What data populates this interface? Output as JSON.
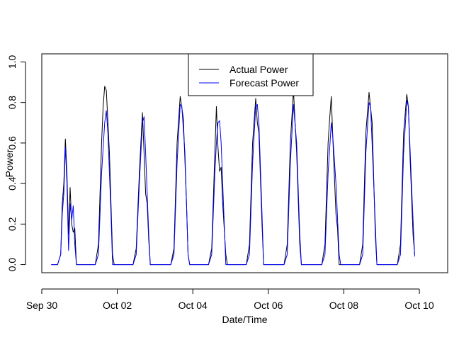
{
  "chart_data": {
    "type": "line",
    "title": "",
    "xlabel": "Date/Time",
    "ylabel": "Power",
    "xlim": [
      "2021-09-30T00:00",
      "2021-10-10T18:00"
    ],
    "ylim": [
      -0.04,
      1.04
    ],
    "x_ticks": [
      "2021-09-30",
      "2021-10-02",
      "2021-10-04",
      "2021-10-06",
      "2021-10-08",
      "2021-10-10"
    ],
    "x_tick_labels": [
      "Sep 30",
      "Oct 02",
      "Oct 04",
      "Oct 06",
      "Oct 08",
      "Oct 10"
    ],
    "y_ticks": [
      0.0,
      0.2,
      0.4,
      0.6,
      0.8,
      1.0
    ],
    "y_tick_labels": [
      "0.0",
      "0.2",
      "0.4",
      "0.6",
      "0.8",
      "1.0"
    ],
    "grid": false,
    "legend": {
      "position": "top-center"
    },
    "series": [
      {
        "name": "Actual Power",
        "color": "#000000",
        "points": [
          [
            "2021-09-30T06:00",
            0.0
          ],
          [
            "2021-09-30T10:00",
            0.0
          ],
          [
            "2021-09-30T12:00",
            0.05
          ],
          [
            "2021-09-30T13:00",
            0.3
          ],
          [
            "2021-09-30T14:00",
            0.4
          ],
          [
            "2021-09-30T15:00",
            0.62
          ],
          [
            "2021-09-30T16:00",
            0.45
          ],
          [
            "2021-09-30T17:00",
            0.15
          ],
          [
            "2021-09-30T18:00",
            0.38
          ],
          [
            "2021-09-30T19:00",
            0.2
          ],
          [
            "2021-09-30T20:00",
            0.16
          ],
          [
            "2021-09-30T21:00",
            0.18
          ],
          [
            "2021-09-30T22:00",
            0.0
          ],
          [
            "2021-10-01T10:00",
            0.0
          ],
          [
            "2021-10-01T12:00",
            0.1
          ],
          [
            "2021-10-01T14:00",
            0.6
          ],
          [
            "2021-10-01T15:00",
            0.78
          ],
          [
            "2021-10-01T16:00",
            0.88
          ],
          [
            "2021-10-01T17:00",
            0.86
          ],
          [
            "2021-10-01T19:00",
            0.55
          ],
          [
            "2021-10-01T21:00",
            0.05
          ],
          [
            "2021-10-01T22:00",
            0.0
          ],
          [
            "2021-10-02T10:00",
            0.0
          ],
          [
            "2021-10-02T12:00",
            0.08
          ],
          [
            "2021-10-02T14:00",
            0.45
          ],
          [
            "2021-10-02T15:00",
            0.6
          ],
          [
            "2021-10-02T16:00",
            0.75
          ],
          [
            "2021-10-02T17:00",
            0.55
          ],
          [
            "2021-10-02T18:00",
            0.35
          ],
          [
            "2021-10-02T19:00",
            0.3
          ],
          [
            "2021-10-02T20:00",
            0.12
          ],
          [
            "2021-10-02T21:00",
            0.0
          ],
          [
            "2021-10-03T10:00",
            0.0
          ],
          [
            "2021-10-03T12:00",
            0.08
          ],
          [
            "2021-10-03T14:00",
            0.6
          ],
          [
            "2021-10-03T16:00",
            0.83
          ],
          [
            "2021-10-03T18:00",
            0.72
          ],
          [
            "2021-10-03T20:00",
            0.3
          ],
          [
            "2021-10-03T21:00",
            0.05
          ],
          [
            "2021-10-03T22:00",
            0.0
          ],
          [
            "2021-10-04T10:00",
            0.0
          ],
          [
            "2021-10-04T12:00",
            0.08
          ],
          [
            "2021-10-04T14:00",
            0.55
          ],
          [
            "2021-10-04T15:00",
            0.78
          ],
          [
            "2021-10-04T16:00",
            0.58
          ],
          [
            "2021-10-04T17:00",
            0.46
          ],
          [
            "2021-10-04T18:00",
            0.48
          ],
          [
            "2021-10-04T19:00",
            0.3
          ],
          [
            "2021-10-04T21:00",
            0.05
          ],
          [
            "2021-10-04T22:00",
            0.0
          ],
          [
            "2021-10-05T10:00",
            0.0
          ],
          [
            "2021-10-05T12:00",
            0.1
          ],
          [
            "2021-10-05T14:00",
            0.6
          ],
          [
            "2021-10-05T16:00",
            0.82
          ],
          [
            "2021-10-05T17:00",
            0.7
          ],
          [
            "2021-10-05T18:00",
            0.65
          ],
          [
            "2021-10-05T20:00",
            0.2
          ],
          [
            "2021-10-05T21:00",
            0.0
          ],
          [
            "2021-10-06T10:00",
            0.0
          ],
          [
            "2021-10-06T12:00",
            0.1
          ],
          [
            "2021-10-06T14:00",
            0.6
          ],
          [
            "2021-10-06T16:00",
            0.86
          ],
          [
            "2021-10-06T18:00",
            0.55
          ],
          [
            "2021-10-06T20:00",
            0.1
          ],
          [
            "2021-10-06T21:00",
            0.0
          ],
          [
            "2021-10-07T10:00",
            0.0
          ],
          [
            "2021-10-07T12:00",
            0.1
          ],
          [
            "2021-10-07T14:00",
            0.6
          ],
          [
            "2021-10-07T15:00",
            0.72
          ],
          [
            "2021-10-07T16:00",
            0.83
          ],
          [
            "2021-10-07T17:00",
            0.62
          ],
          [
            "2021-10-07T19:00",
            0.25
          ],
          [
            "2021-10-07T20:00",
            0.18
          ],
          [
            "2021-10-07T21:00",
            0.0
          ],
          [
            "2021-10-08T10:00",
            0.0
          ],
          [
            "2021-10-08T12:00",
            0.1
          ],
          [
            "2021-10-08T14:00",
            0.65
          ],
          [
            "2021-10-08T16:00",
            0.85
          ],
          [
            "2021-10-08T18:00",
            0.7
          ],
          [
            "2021-10-08T20:00",
            0.15
          ],
          [
            "2021-10-08T21:00",
            0.0
          ],
          [
            "2021-10-09T10:00",
            0.0
          ],
          [
            "2021-10-09T12:00",
            0.1
          ],
          [
            "2021-10-09T14:00",
            0.65
          ],
          [
            "2021-10-09T16:00",
            0.84
          ],
          [
            "2021-10-09T17:00",
            0.78
          ],
          [
            "2021-10-09T18:00",
            0.55
          ],
          [
            "2021-10-09T20:00",
            0.15
          ],
          [
            "2021-10-09T21:00",
            0.05
          ]
        ]
      },
      {
        "name": "Forecast Power",
        "color": "#0000ff",
        "points": [
          [
            "2021-09-30T06:00",
            0.0
          ],
          [
            "2021-09-30T10:00",
            0.0
          ],
          [
            "2021-09-30T12:00",
            0.05
          ],
          [
            "2021-09-30T13:00",
            0.25
          ],
          [
            "2021-09-30T14:00",
            0.35
          ],
          [
            "2021-09-30T15:00",
            0.58
          ],
          [
            "2021-09-30T16:00",
            0.4
          ],
          [
            "2021-09-30T17:00",
            0.07
          ],
          [
            "2021-09-30T18:00",
            0.3
          ],
          [
            "2021-09-30T19:00",
            0.22
          ],
          [
            "2021-09-30T20:00",
            0.29
          ],
          [
            "2021-09-30T21:00",
            0.1
          ],
          [
            "2021-09-30T22:00",
            0.0
          ],
          [
            "2021-10-01T10:00",
            0.0
          ],
          [
            "2021-10-01T12:00",
            0.05
          ],
          [
            "2021-10-01T14:00",
            0.45
          ],
          [
            "2021-10-01T16:00",
            0.7
          ],
          [
            "2021-10-01T17:00",
            0.76
          ],
          [
            "2021-10-01T18:00",
            0.65
          ],
          [
            "2021-10-01T20:00",
            0.25
          ],
          [
            "2021-10-01T21:00",
            0.0
          ],
          [
            "2021-10-02T10:00",
            0.0
          ],
          [
            "2021-10-02T12:00",
            0.05
          ],
          [
            "2021-10-02T14:00",
            0.4
          ],
          [
            "2021-10-02T16:00",
            0.7
          ],
          [
            "2021-10-02T17:00",
            0.73
          ],
          [
            "2021-10-02T18:00",
            0.55
          ],
          [
            "2021-10-02T20:00",
            0.15
          ],
          [
            "2021-10-02T21:00",
            0.0
          ],
          [
            "2021-10-03T10:00",
            0.0
          ],
          [
            "2021-10-03T12:00",
            0.05
          ],
          [
            "2021-10-03T14:00",
            0.5
          ],
          [
            "2021-10-03T16:00",
            0.79
          ],
          [
            "2021-10-03T17:00",
            0.78
          ],
          [
            "2021-10-03T19:00",
            0.55
          ],
          [
            "2021-10-03T21:00",
            0.05
          ],
          [
            "2021-10-03T22:00",
            0.0
          ],
          [
            "2021-10-04T10:00",
            0.0
          ],
          [
            "2021-10-04T12:00",
            0.05
          ],
          [
            "2021-10-04T14:00",
            0.45
          ],
          [
            "2021-10-04T15:00",
            0.6
          ],
          [
            "2021-10-04T16:00",
            0.7
          ],
          [
            "2021-10-04T17:00",
            0.71
          ],
          [
            "2021-10-04T18:00",
            0.6
          ],
          [
            "2021-10-04T20:00",
            0.2
          ],
          [
            "2021-10-04T21:00",
            0.0
          ],
          [
            "2021-10-05T10:00",
            0.0
          ],
          [
            "2021-10-05T12:00",
            0.05
          ],
          [
            "2021-10-05T14:00",
            0.5
          ],
          [
            "2021-10-05T16:00",
            0.78
          ],
          [
            "2021-10-05T17:00",
            0.79
          ],
          [
            "2021-10-05T18:00",
            0.7
          ],
          [
            "2021-10-05T20:00",
            0.25
          ],
          [
            "2021-10-05T21:00",
            0.0
          ],
          [
            "2021-10-06T10:00",
            0.0
          ],
          [
            "2021-10-06T12:00",
            0.05
          ],
          [
            "2021-10-06T14:00",
            0.5
          ],
          [
            "2021-10-06T16:00",
            0.79
          ],
          [
            "2021-10-06T18:00",
            0.6
          ],
          [
            "2021-10-06T20:00",
            0.15
          ],
          [
            "2021-10-06T21:00",
            0.0
          ],
          [
            "2021-10-07T10:00",
            0.0
          ],
          [
            "2021-10-07T12:00",
            0.05
          ],
          [
            "2021-10-07T14:00",
            0.45
          ],
          [
            "2021-10-07T16:00",
            0.7
          ],
          [
            "2021-10-07T17:00",
            0.63
          ],
          [
            "2021-10-07T19:00",
            0.4
          ],
          [
            "2021-10-07T21:00",
            0.05
          ],
          [
            "2021-10-07T22:00",
            0.0
          ],
          [
            "2021-10-08T10:00",
            0.0
          ],
          [
            "2021-10-08T12:00",
            0.05
          ],
          [
            "2021-10-08T14:00",
            0.55
          ],
          [
            "2021-10-08T16:00",
            0.8
          ],
          [
            "2021-10-08T17:00",
            0.78
          ],
          [
            "2021-10-08T19:00",
            0.4
          ],
          [
            "2021-10-08T21:00",
            0.0
          ],
          [
            "2021-10-09T10:00",
            0.0
          ],
          [
            "2021-10-09T12:00",
            0.05
          ],
          [
            "2021-10-09T14:00",
            0.55
          ],
          [
            "2021-10-09T16:00",
            0.81
          ],
          [
            "2021-10-09T17:00",
            0.78
          ],
          [
            "2021-10-09T19:00",
            0.4
          ],
          [
            "2021-10-09T21:00",
            0.04
          ]
        ]
      }
    ]
  }
}
